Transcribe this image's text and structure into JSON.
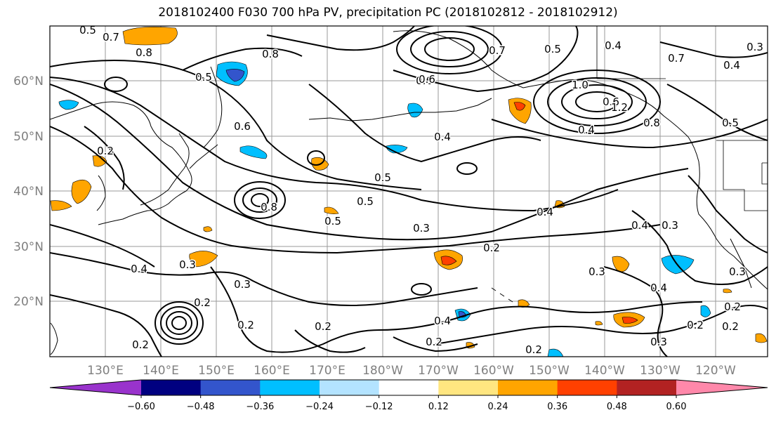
{
  "title": "2018102400 F030 700 hPa PV, precipitation PC (2018102812 - 2018102912)",
  "lat_labels": [
    "60°N",
    "50°N",
    "40°N",
    "30°N",
    "20°N"
  ],
  "lon_labels": [
    "130°E",
    "140°E",
    "150°E",
    "160°E",
    "170°E",
    "180°W",
    "170°W",
    "160°W",
    "150°W",
    "140°W",
    "130°W",
    "120°W"
  ],
  "colorbar": {
    "colors": [
      "#9933cc",
      "#000080",
      "#3355cc",
      "#00bfff",
      "#b3e3ff",
      "#ffffff",
      "#ffe680",
      "#ffa500",
      "#ff4000",
      "#b22222",
      "#ff88aa"
    ],
    "tick_labels": [
      "−0.60",
      "−0.48",
      "−0.36",
      "−0.24",
      "−0.12",
      "0.12",
      "0.24",
      "0.36",
      "0.48",
      "0.60"
    ]
  },
  "contour_labels": [
    "0.5",
    "0.7",
    "0.8",
    "0.5",
    "0.8",
    "0.6",
    "0.7",
    "0.5",
    "0.4",
    "0.3",
    "0.4",
    "0.7",
    "0.5",
    "0.6",
    "1.0",
    "1.2",
    "0.4",
    "0.8",
    "0.6",
    "0.2",
    "0.6",
    "0.4",
    "0.5",
    "0.5",
    "0.8",
    "0.5",
    "0.4",
    "0.4",
    "0.3",
    "0.3",
    "0.4",
    "0.3",
    "0.3",
    "0.2",
    "0.2",
    "0.3",
    "0.2",
    "0.2",
    "0.4",
    "0.2",
    "0.3",
    "0.3",
    "0.4",
    "0.2",
    "0.2",
    "0.2",
    "0.2",
    "0.2"
  ]
}
